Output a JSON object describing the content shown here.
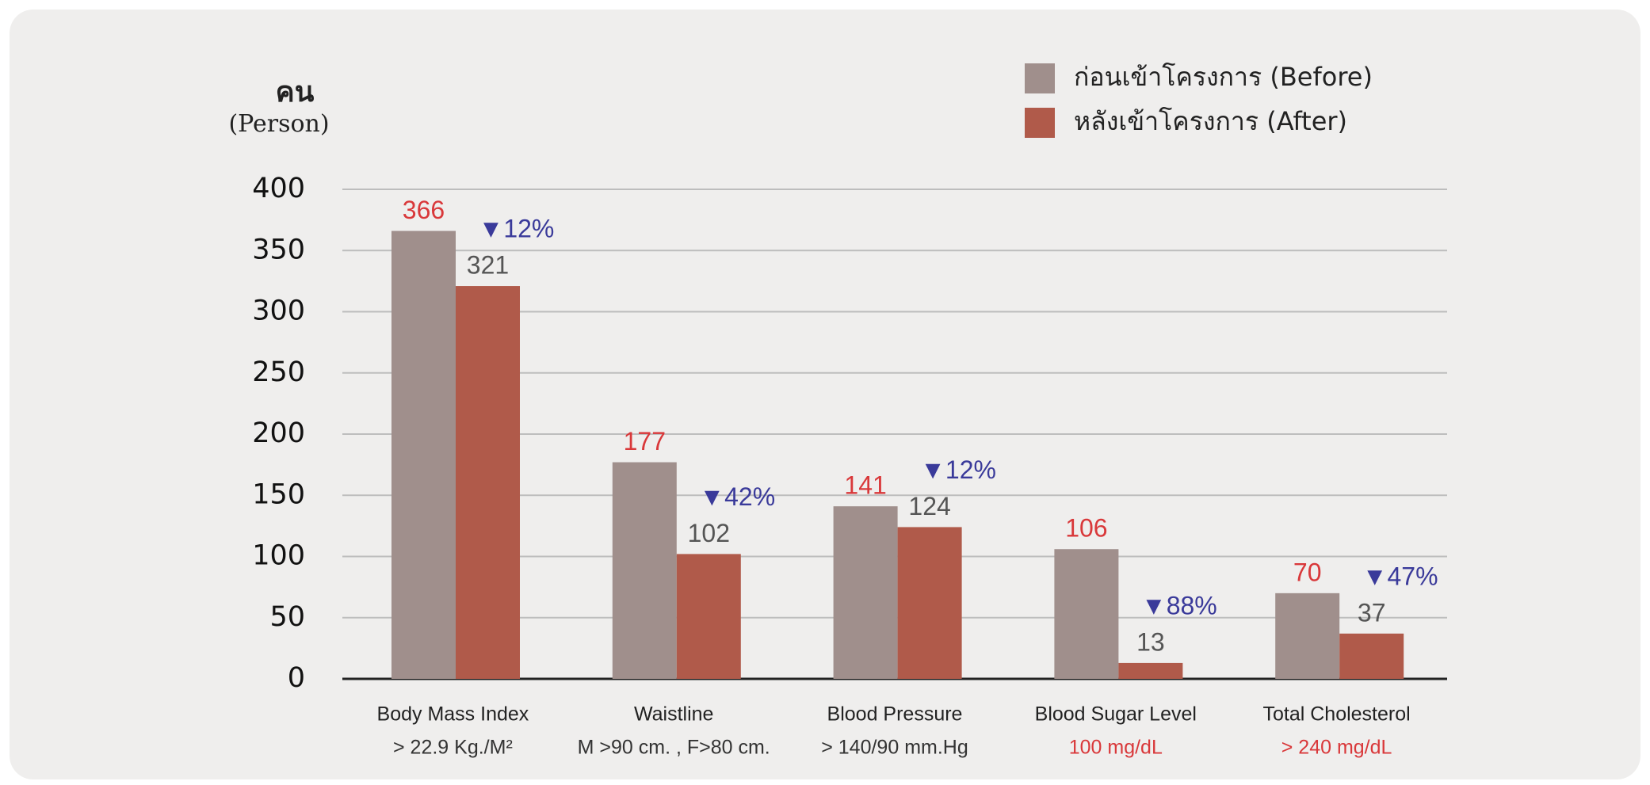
{
  "chart_data": {
    "type": "bar",
    "y_label": [
      "คน",
      "(Person)"
    ],
    "categories": [
      "Body Mass Index",
      "Waistline",
      "Blood Pressure",
      "Blood Sugar Level",
      "Total Cholesterol"
    ],
    "category_sublabels": [
      "> 22.9 Kg./M²",
      "M >90 cm. , F>80 cm.",
      "> 140/90 mm.Hg",
      "100 mg/dL",
      "> 240 mg/dL"
    ],
    "category_sublabel_colors": [
      "#333333",
      "#333333",
      "#333333",
      "#d9383a",
      "#d9383a"
    ],
    "series": [
      {
        "name": "ก่อนเข้าโครงการ (Before)",
        "color": "#a08f8c",
        "label_color": "#d9383a",
        "values": [
          366,
          177,
          141,
          106,
          70
        ]
      },
      {
        "name": "หลังเข้าโครงการ (After)",
        "color": "#b05a4a",
        "label_color": "#555555",
        "values": [
          321,
          102,
          124,
          13,
          37
        ]
      }
    ],
    "annotations": [
      "▼12%",
      "▼42%",
      "▼12%",
      "▼88%",
      "▼47%"
    ],
    "annotation_color": "#3a3a9a",
    "ylim": [
      0,
      400
    ],
    "yticks": [
      0,
      50,
      100,
      150,
      200,
      250,
      300,
      350,
      400
    ],
    "grid": true,
    "legend": "top-right"
  }
}
